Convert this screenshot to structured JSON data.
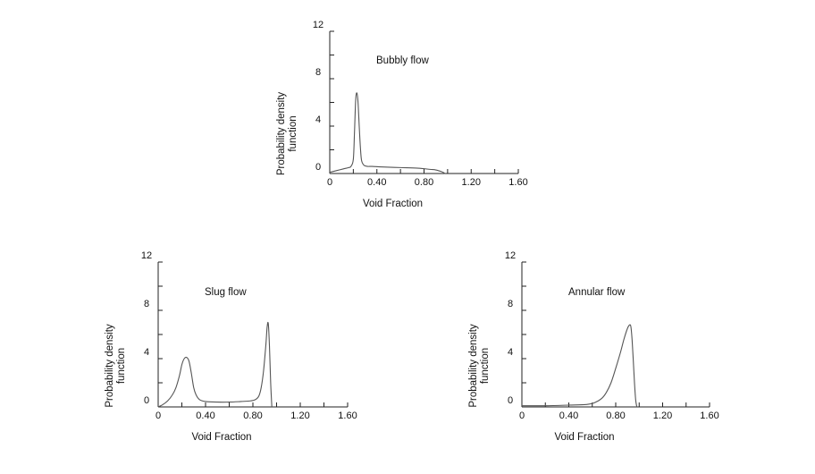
{
  "chart_data": [
    {
      "type": "line",
      "title": "Bubbly flow",
      "xlabel": "Void Fraction",
      "ylabel": [
        "Probability density",
        "function"
      ],
      "xlim": [
        0,
        1.6
      ],
      "ylim": [
        0,
        12
      ],
      "x_ticks": [
        "0",
        "0.40",
        "0.80",
        "1.20",
        "1.60"
      ],
      "y_ticks": [
        "0",
        "4",
        "8",
        "12"
      ],
      "series": [
        {
          "x": [
            0,
            0.06,
            0.12,
            0.16,
            0.18,
            0.2,
            0.21,
            0.22,
            0.23,
            0.24,
            0.25,
            0.26,
            0.27,
            0.29,
            0.32,
            0.36,
            0.45,
            0.6,
            0.75,
            0.85,
            0.9,
            0.95,
            0.97,
            0.98
          ],
          "y": [
            0.1,
            0.25,
            0.4,
            0.5,
            0.6,
            1.2,
            3.5,
            6.2,
            6.8,
            6.0,
            4.0,
            2.2,
            1.1,
            0.7,
            0.6,
            0.6,
            0.55,
            0.5,
            0.45,
            0.35,
            0.3,
            0.15,
            0.05,
            0
          ]
        }
      ]
    },
    {
      "type": "line",
      "title": "Slug flow",
      "xlabel": "Void Fraction",
      "ylabel": [
        "Probability density",
        "function"
      ],
      "xlim": [
        0,
        1.6
      ],
      "ylim": [
        0,
        12
      ],
      "x_ticks": [
        "0",
        "0.40",
        "0.80",
        "1.20",
        "1.60"
      ],
      "y_ticks": [
        "0",
        "4",
        "8",
        "12"
      ],
      "series": [
        {
          "x": [
            0,
            0.04,
            0.08,
            0.12,
            0.15,
            0.18,
            0.2,
            0.22,
            0.24,
            0.26,
            0.28,
            0.3,
            0.32,
            0.35,
            0.4,
            0.5,
            0.6,
            0.7,
            0.78,
            0.82,
            0.85,
            0.87,
            0.89,
            0.91,
            0.92,
            0.93,
            0.94,
            0.95,
            0.96
          ],
          "y": [
            0,
            0.2,
            0.5,
            1.0,
            1.6,
            2.6,
            3.5,
            4.0,
            4.1,
            3.8,
            2.8,
            1.6,
            1.0,
            0.6,
            0.45,
            0.4,
            0.4,
            0.45,
            0.5,
            0.6,
            0.9,
            1.6,
            3.0,
            5.2,
            6.6,
            6.9,
            5.0,
            2.0,
            0
          ]
        }
      ]
    },
    {
      "type": "line",
      "title": "Annular flow",
      "xlabel": "Void Fraction",
      "ylabel": [
        "Probability density",
        "function"
      ],
      "xlim": [
        0,
        1.6
      ],
      "ylim": [
        0,
        12
      ],
      "x_ticks": [
        "0",
        "0.40",
        "0.80",
        "1.20",
        "1.60"
      ],
      "y_ticks": [
        "0",
        "4",
        "8",
        "12"
      ],
      "series": [
        {
          "x": [
            0,
            0.2,
            0.4,
            0.55,
            0.62,
            0.68,
            0.72,
            0.76,
            0.8,
            0.84,
            0.87,
            0.9,
            0.92,
            0.93,
            0.94,
            0.95,
            0.96,
            0.97,
            0.98
          ],
          "y": [
            0.1,
            0.1,
            0.15,
            0.2,
            0.35,
            0.7,
            1.2,
            2.0,
            3.2,
            4.5,
            5.6,
            6.5,
            6.8,
            6.6,
            5.5,
            3.8,
            2.0,
            0.6,
            0
          ]
        }
      ]
    }
  ]
}
